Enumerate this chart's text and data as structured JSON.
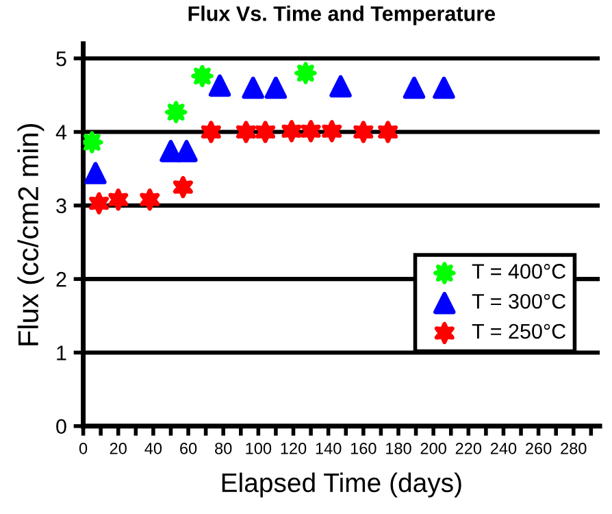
{
  "chart_data": {
    "type": "scatter",
    "title": "Flux Vs. Time and Temperature",
    "xlabel": "Elapsed Time (days)",
    "ylabel": "Flux (cc/cm2 min)",
    "series": [
      {
        "name": "T = 400°C",
        "color": "#00ff00",
        "marker": "star",
        "x": [
          5,
          53,
          68,
          127
        ],
        "values": [
          3.86,
          4.27,
          4.76,
          4.8
        ]
      },
      {
        "name": "T = 300°C",
        "color": "#0000ff",
        "marker": "triangle",
        "x": [
          7,
          50,
          59,
          78,
          97,
          110,
          147,
          189,
          206
        ],
        "values": [
          3.44,
          3.74,
          3.74,
          4.63,
          4.6,
          4.6,
          4.62,
          4.6,
          4.6
        ]
      },
      {
        "name": "T = 250°C",
        "color": "#ff0000",
        "marker": "cross",
        "x": [
          9,
          20,
          38,
          57,
          73,
          93,
          104,
          119,
          130,
          142,
          160,
          174
        ],
        "values": [
          3.03,
          3.08,
          3.08,
          3.25,
          4.0,
          4.0,
          4.0,
          4.01,
          4.01,
          4.01,
          4.0,
          4.0
        ]
      }
    ],
    "xlim": [
      0,
      295
    ],
    "ylim": [
      0,
      5.2
    ],
    "xticks": [
      0,
      {
        "value": 10,
        "label": null
      },
      20,
      {
        "value": 30,
        "label": null
      },
      40,
      {
        "value": 50,
        "label": null
      },
      60,
      {
        "value": 70,
        "label": null
      },
      80,
      {
        "value": 90,
        "label": null
      },
      100,
      {
        "value": 110,
        "label": null
      },
      120,
      {
        "value": 130,
        "label": null
      },
      140,
      {
        "value": 150,
        "label": null
      },
      160,
      {
        "value": 170,
        "label": null
      },
      180,
      {
        "value": 190,
        "label": null
      },
      200,
      {
        "value": 210,
        "label": null
      },
      220,
      {
        "value": 230,
        "label": null
      },
      240,
      {
        "value": 250,
        "label": null
      },
      260,
      {
        "value": 270,
        "label": null
      },
      280,
      {
        "value": 290,
        "label": null
      }
    ],
    "yticks": [
      0,
      1,
      2,
      3,
      4,
      5
    ],
    "grid": "y",
    "legend": "bottom right"
  }
}
